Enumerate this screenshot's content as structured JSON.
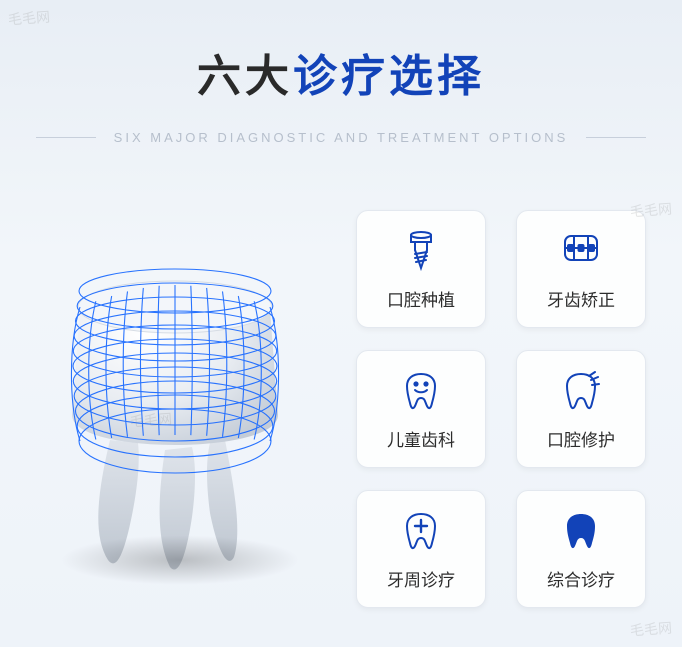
{
  "title": {
    "part1": "六大",
    "part2": "诊疗选择"
  },
  "subtitle": "SIX MAJOR DIAGNOSTIC AND TREATMENT OPTIONS",
  "colors": {
    "title_dark": "#2a2a2a",
    "title_accent": "#1243b8",
    "subtitle": "#b6bfcc",
    "card_bg": "#fdfefe",
    "card_border": "#e3e8ef",
    "icon_outline": "#1243b8",
    "icon_solid": "#1243b8",
    "mesh": "#1e6cff",
    "tooth_body": "#e9edf2",
    "tooth_highlight": "#ffffff",
    "tooth_shadow": "#bfc7d1"
  },
  "hero": {
    "type": "illustration",
    "description": "3D molar tooth with blue wireframe mesh overlay on crown",
    "mesh_lines_horizontal": 11,
    "mesh_lines_vertical": 13
  },
  "cards": [
    {
      "icon": "implant",
      "label": "口腔种植"
    },
    {
      "icon": "braces",
      "label": "牙齿矫正"
    },
    {
      "icon": "child-tooth",
      "label": "儿童齿科"
    },
    {
      "icon": "repair-tooth",
      "label": "口腔修护"
    },
    {
      "icon": "perio-tooth",
      "label": "牙周诊疗"
    },
    {
      "icon": "solid-tooth",
      "label": "综合诊疗"
    }
  ],
  "watermarks": [
    "毛毛网",
    "毛毛网",
    "毛毛网",
    "毛毛网"
  ]
}
